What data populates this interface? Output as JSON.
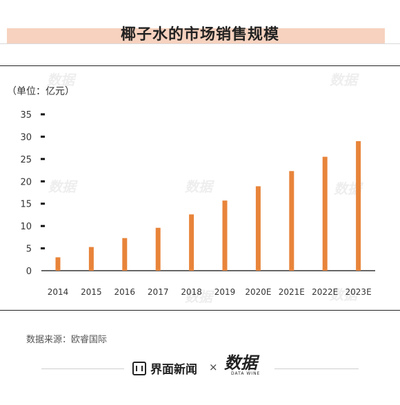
{
  "title": "椰子水的市场销售规模",
  "unit_label": "（单位：亿元）",
  "source": "数据来源：欧睿国际",
  "footer": {
    "brand_name": "界面新闻",
    "times": "×",
    "partner_name": "数据",
    "partner_sub": "DATA WINE"
  },
  "chart_data": {
    "type": "bar",
    "title": "椰子水的市场销售规模",
    "ylabel": "（单位：亿元）",
    "xlabel": "",
    "categories": [
      "2014",
      "2015",
      "2016",
      "2017",
      "2018",
      "2019",
      "2020E",
      "2021E",
      "2022E",
      "2023E"
    ],
    "values": [
      3,
      5.3,
      7.3,
      9.6,
      12.6,
      15.7,
      18.9,
      22.3,
      25.5,
      29
    ],
    "ylim": [
      0,
      35
    ],
    "yticks": [
      "0",
      "5",
      "10",
      "15",
      "20",
      "25",
      "30",
      "35"
    ],
    "bar_color": "#e8843a",
    "grid": false,
    "legend": "none"
  }
}
